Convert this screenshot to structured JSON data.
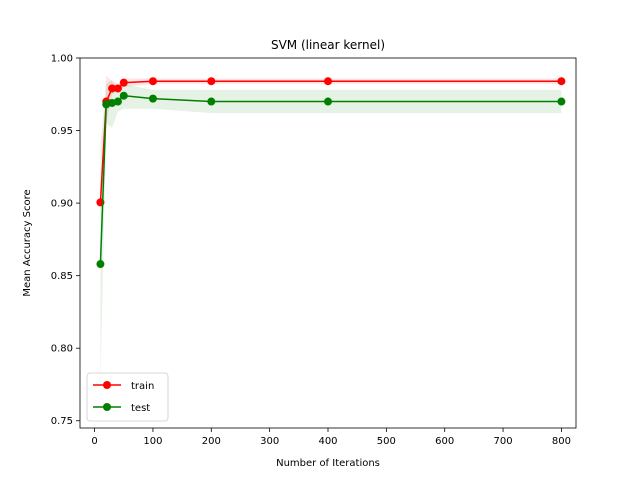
{
  "chart_data": {
    "type": "line",
    "title": "SVM (linear kernel)",
    "xlabel": "Number of Iterations",
    "ylabel": "Mean Accuracy Score",
    "xlim": [
      -25,
      825
    ],
    "ylim": [
      0.745,
      1.0
    ],
    "xticks": [
      0,
      100,
      200,
      300,
      400,
      500,
      600,
      700,
      800
    ],
    "yticks": [
      0.75,
      0.8,
      0.85,
      0.9,
      0.95,
      1.0
    ],
    "xtick_labels": [
      "0",
      "100",
      "200",
      "300",
      "400",
      "500",
      "600",
      "700",
      "800"
    ],
    "ytick_labels": [
      "0.75",
      "0.80",
      "0.85",
      "0.90",
      "0.95",
      "1.00"
    ],
    "grid": false,
    "legend_position": "lower-left",
    "x": [
      10,
      20,
      30,
      40,
      50,
      100,
      200,
      400,
      800
    ],
    "series": [
      {
        "name": "train",
        "color": "#ff0000",
        "marker": "circle",
        "values": [
          0.9005,
          0.97,
          0.979,
          0.979,
          0.983,
          0.984,
          0.984,
          0.984,
          0.984
        ],
        "band_lower": [
          0.897,
          0.955,
          0.975,
          0.977,
          0.98,
          0.982,
          0.982,
          0.982,
          0.982
        ],
        "band_upper": [
          0.904,
          0.988,
          0.984,
          0.982,
          0.986,
          0.986,
          0.986,
          0.986,
          0.986
        ]
      },
      {
        "name": "test",
        "color": "#008000",
        "marker": "circle",
        "values": [
          0.858,
          0.968,
          0.969,
          0.97,
          0.974,
          0.972,
          0.97,
          0.97,
          0.97
        ],
        "band_lower": [
          0.775,
          0.955,
          0.952,
          0.963,
          0.965,
          0.965,
          0.962,
          0.962,
          0.962
        ],
        "band_upper": [
          0.94,
          0.982,
          0.985,
          0.978,
          0.982,
          0.978,
          0.978,
          0.978,
          0.978
        ]
      }
    ]
  }
}
